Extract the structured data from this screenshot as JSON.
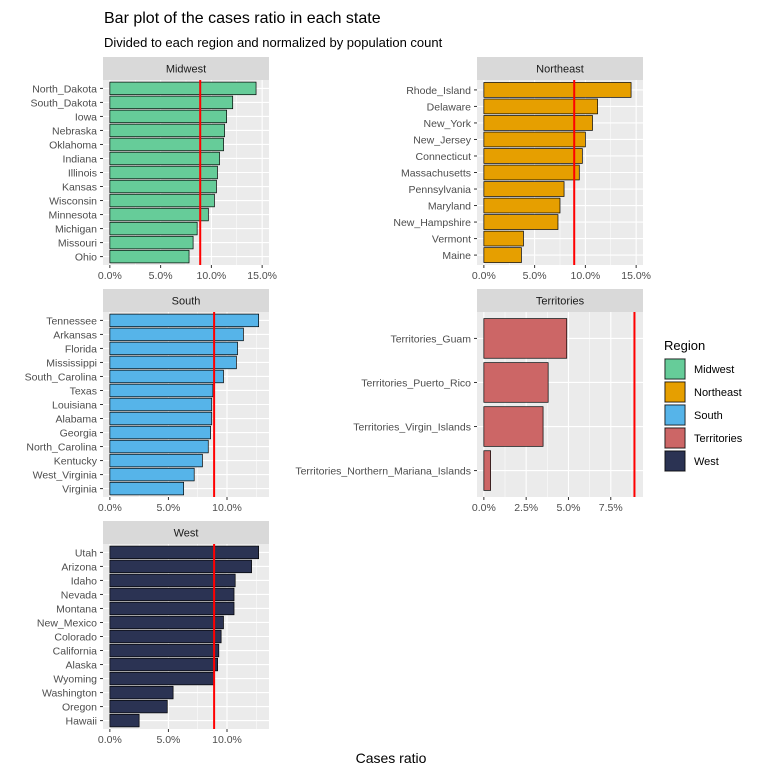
{
  "title": "Bar plot of the cases ratio in each state",
  "subtitle": "Divided to each region and normalized by population count",
  "colors": {
    "panel_bg": "#EBEBEB",
    "strip_bg": "#D9D9D9",
    "grid": "#FFFFFF",
    "reference_line": "#FF0000",
    "bar_outline": "#000000"
  },
  "chart_data": {
    "type": "bar",
    "orientation": "horizontal",
    "xlabel": "Cases ratio",
    "ylabel": "",
    "reference_line_value": 0.089,
    "grid": true,
    "legend": {
      "title": "Region",
      "placement": "right",
      "entries": [
        {
          "name": "Midwest",
          "color": "#66CC99"
        },
        {
          "name": "Northeast",
          "color": "#E69F00"
        },
        {
          "name": "South",
          "color": "#56B4E9"
        },
        {
          "name": "Territories",
          "color": "#CC6666"
        },
        {
          "name": "West",
          "color": "#2B3353"
        }
      ]
    },
    "panels": [
      {
        "name": "Midwest",
        "color": "#66CC99",
        "xlim": [
          0,
          0.15
        ],
        "ticks": [
          0,
          0.05,
          0.1,
          0.15
        ],
        "tick_labels": [
          "0.0%",
          "5.0%",
          "10.0%",
          "15.0%"
        ],
        "categories": [
          "North_Dakota",
          "South_Dakota",
          "Iowa",
          "Nebraska",
          "Oklahoma",
          "Indiana",
          "Illinois",
          "Kansas",
          "Wisconsin",
          "Minnesota",
          "Michigan",
          "Missouri",
          "Ohio"
        ],
        "values": [
          0.144,
          0.121,
          0.115,
          0.113,
          0.112,
          0.108,
          0.106,
          0.105,
          0.103,
          0.097,
          0.086,
          0.082,
          0.078
        ]
      },
      {
        "name": "Northeast",
        "color": "#E69F00",
        "xlim": [
          0,
          0.15
        ],
        "ticks": [
          0,
          0.05,
          0.1,
          0.15
        ],
        "tick_labels": [
          "0.0%",
          "5.0%",
          "10.0%",
          "15.0%"
        ],
        "categories": [
          "Rhode_Island",
          "Delaware",
          "New_York",
          "New_Jersey",
          "Connecticut",
          "Massachusetts",
          "Pennsylvania",
          "Maryland",
          "New_Hampshire",
          "Vermont",
          "Maine"
        ],
        "values": [
          0.145,
          0.112,
          0.107,
          0.1,
          0.097,
          0.094,
          0.079,
          0.075,
          0.073,
          0.039,
          0.037
        ]
      },
      {
        "name": "South",
        "color": "#56B4E9",
        "xlim": [
          0,
          0.13
        ],
        "ticks": [
          0,
          0.05,
          0.1
        ],
        "tick_labels": [
          "0.0%",
          "5.0%",
          "10.0%"
        ],
        "categories": [
          "Tennessee",
          "Arkansas",
          "Florida",
          "Mississippi",
          "South_Carolina",
          "Texas",
          "Louisiana",
          "Alabama",
          "Georgia",
          "North_Carolina",
          "Kentucky",
          "West_Virginia",
          "Virginia"
        ],
        "values": [
          0.127,
          0.114,
          0.109,
          0.108,
          0.097,
          0.088,
          0.087,
          0.087,
          0.086,
          0.084,
          0.079,
          0.072,
          0.063
        ]
      },
      {
        "name": "Territories",
        "color": "#CC6666",
        "xlim": [
          0,
          0.09
        ],
        "ticks": [
          0,
          0.025,
          0.05,
          0.075
        ],
        "tick_labels": [
          "0.0%",
          "2.5%",
          "5.0%",
          "7.5%"
        ],
        "categories": [
          "Territories_Guam",
          "Territories_Puerto_Rico",
          "Territories_Virgin_Islands",
          "Territories_Northern_Mariana_Islands"
        ],
        "values": [
          0.049,
          0.038,
          0.035,
          0.004
        ]
      },
      {
        "name": "West",
        "color": "#2B3353",
        "xlim": [
          0,
          0.13
        ],
        "ticks": [
          0,
          0.05,
          0.1
        ],
        "tick_labels": [
          "0.0%",
          "5.0%",
          "10.0%"
        ],
        "categories": [
          "Utah",
          "Arizona",
          "Idaho",
          "Nevada",
          "Montana",
          "New_Mexico",
          "Colorado",
          "California",
          "Alaska",
          "Wyoming",
          "Washington",
          "Oregon",
          "Hawaii"
        ],
        "values": [
          0.127,
          0.121,
          0.107,
          0.106,
          0.106,
          0.097,
          0.095,
          0.093,
          0.092,
          0.089,
          0.054,
          0.049,
          0.025
        ]
      }
    ]
  }
}
